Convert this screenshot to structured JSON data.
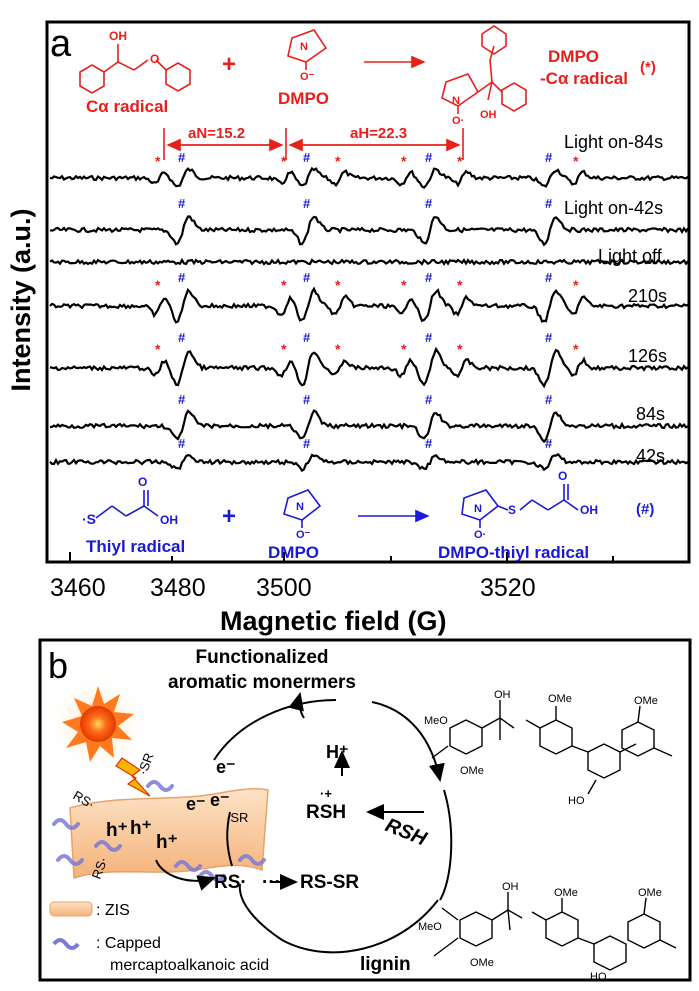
{
  "panel_a": {
    "letter": "a",
    "y_label": "Intensity (a.u.)",
    "x_label": "Magnetic field (G)",
    "x_ticks": [
      "3460",
      "3480",
      "3500",
      "3520"
    ],
    "top_reaction": {
      "reactant1_label": "Cα radical",
      "plus": "+",
      "reactant2_label": "DMPO",
      "product_label_line1": "DMPO",
      "product_label_line2": "-Cα radical",
      "marker": "(*)"
    },
    "bottom_reaction": {
      "reactant1_label": "Thiyl radical",
      "plus": "+",
      "reactant2_label": "DMPO",
      "product_label": "DMPO-thiyl radical",
      "marker": "(#)"
    },
    "couplings": {
      "aN": "aN=15.2",
      "aH": "aH=22.3"
    },
    "traces": [
      "Light on-84s",
      "Light on-42s",
      "Light off",
      "210s",
      "126s",
      "84s",
      "42s"
    ],
    "colors": {
      "red": "#e8201b",
      "blue": "#1a1ad6"
    }
  },
  "panel_b": {
    "letter": "b",
    "title_line1": "Functionalized",
    "title_line2": "aromatic monermers",
    "species": {
      "e": "e⁻",
      "h": "h⁺",
      "h_plus": "H⁺",
      "rsh_radical_cation": "RSH",
      "rsh": "RSH",
      "rs_radical": "RS·",
      "rs_sr": "RS-SR",
      "lignin": "lignin",
      "sr_surface": "·SR",
      "rs_surface": "RS·"
    },
    "legend": {
      "zis": ": ZIS",
      "capped_line1": ": Capped",
      "capped_line2": "mercaptoalkanoic  acid"
    },
    "ome": "OMe",
    "meo": "MeO",
    "oh": "OH",
    "ho": "HO"
  }
}
